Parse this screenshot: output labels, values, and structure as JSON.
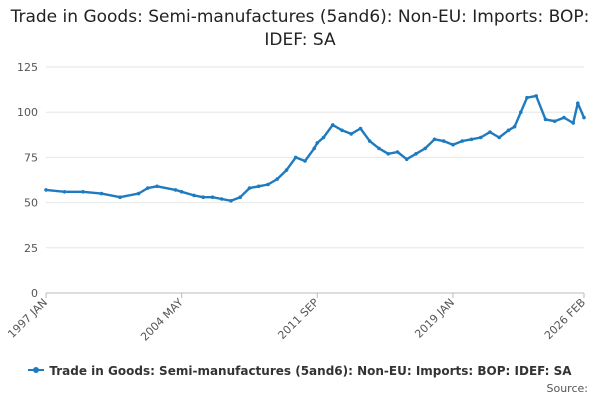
{
  "chart_data": {
    "type": "line",
    "title": "Trade in Goods: Semi-manufactures (5and6): Non-EU: Imports: BOP: IDEF: SA",
    "xlabel": "",
    "ylabel": "",
    "ylim": [
      0,
      125
    ],
    "yticks": [
      0,
      25,
      50,
      75,
      100,
      125
    ],
    "xlim": [
      "1997 JAN",
      "2026 FEB"
    ],
    "xticks": [
      "1997 JAN",
      "2004 MAY",
      "2011 SEP",
      "2019 JAN",
      "2026 FEB"
    ],
    "grid": "horizontal",
    "legend": "bottom",
    "series": [
      {
        "name": "Trade in Goods: Semi-manufactures (5and6): Non-EU: Imports: BOP: IDEF: SA",
        "x": [
          "1997 JAN",
          "1998 JAN",
          "1999 JAN",
          "2000 JAN",
          "2001 JAN",
          "2002 JAN",
          "2002 JUL",
          "2003 JAN",
          "2004 JAN",
          "2004 MAY",
          "2005 JAN",
          "2005 JUL",
          "2006 JAN",
          "2006 JUL",
          "2007 JAN",
          "2007 JUL",
          "2008 JAN",
          "2008 JUL",
          "2009 JAN",
          "2009 JUL",
          "2010 JAN",
          "2010 JUL",
          "2011 JAN",
          "2011 JUL",
          "2011 SEP",
          "2012 JAN",
          "2012 JUL",
          "2013 JAN",
          "2013 JUL",
          "2014 JAN",
          "2014 JUL",
          "2015 JAN",
          "2015 JUL",
          "2016 JAN",
          "2016 JUL",
          "2017 JAN",
          "2017 JUL",
          "2018 JAN",
          "2018 JUL",
          "2019 JAN",
          "2019 JUL",
          "2020 JAN",
          "2020 JUL",
          "2021 JAN",
          "2021 JUL",
          "2022 JAN",
          "2022 MAY",
          "2022 SEP",
          "2023 JAN",
          "2023 JUL",
          "2024 JAN",
          "2024 JUL",
          "2025 JAN",
          "2025 JUL",
          "2025 OCT",
          "2026 FEB"
        ],
        "values": [
          57,
          56,
          56,
          55,
          53,
          55,
          58,
          59,
          57,
          56,
          54,
          53,
          53,
          52,
          51,
          53,
          58,
          59,
          60,
          63,
          68,
          75,
          73,
          80,
          83,
          86,
          93,
          90,
          88,
          91,
          84,
          80,
          77,
          78,
          74,
          77,
          80,
          85,
          84,
          82,
          84,
          85,
          86,
          89,
          86,
          90,
          92,
          100,
          108,
          109,
          96,
          95,
          97,
          94,
          105,
          97
        ]
      }
    ],
    "colors": {
      "line": "#1f7bbf",
      "grid": "#e6e6e6",
      "axis": "#bbbbbb",
      "text": "#555555"
    }
  },
  "source_label": "Source:"
}
